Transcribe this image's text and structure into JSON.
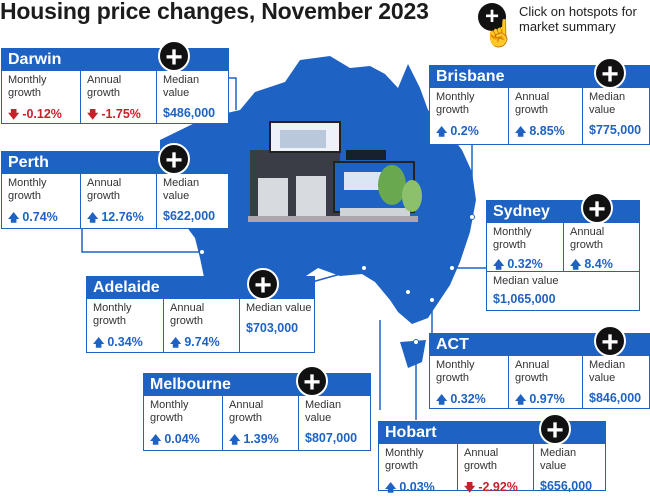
{
  "header": {
    "title": "Housing price changes, November 2023",
    "hint": "Click on hotspots for market summary",
    "hint_icon": "plus-hotspot-icon"
  },
  "colors": {
    "accent": "#1e63c4",
    "map": "#1e63c4",
    "negative": "#c8202b"
  },
  "labels": {
    "monthly": "Monthly growth",
    "annual": "Annual growth",
    "median": "Median value",
    "median_inline": "Median value"
  },
  "cities": {
    "darwin": {
      "name": "Darwin",
      "monthly": "-0.12%",
      "annual": "-1.75%",
      "median": "$486,000"
    },
    "perth": {
      "name": "Perth",
      "monthly": "0.74%",
      "annual": "12.76%",
      "median": "$622,000"
    },
    "adelaide": {
      "name": "Adelaide",
      "monthly": "0.34%",
      "annual": "9.74%",
      "median": "$703,000"
    },
    "melbourne": {
      "name": "Melbourne",
      "monthly": "0.04%",
      "annual": "1.39%",
      "median": "$807,000"
    },
    "hobart": {
      "name": "Hobart",
      "monthly": "0.03%",
      "annual": "-2.92%",
      "median": "$656,000"
    },
    "act": {
      "name": "ACT",
      "monthly": "0.32%",
      "annual": "0.97%",
      "median": "$846,000"
    },
    "sydney": {
      "name": "Sydney",
      "monthly": "0.32%",
      "annual": "8.4%",
      "median": "$1,065,000"
    },
    "brisbane": {
      "name": "Brisbane",
      "monthly": "0.2%",
      "annual": "8.85%",
      "median": "$775,000"
    }
  }
}
